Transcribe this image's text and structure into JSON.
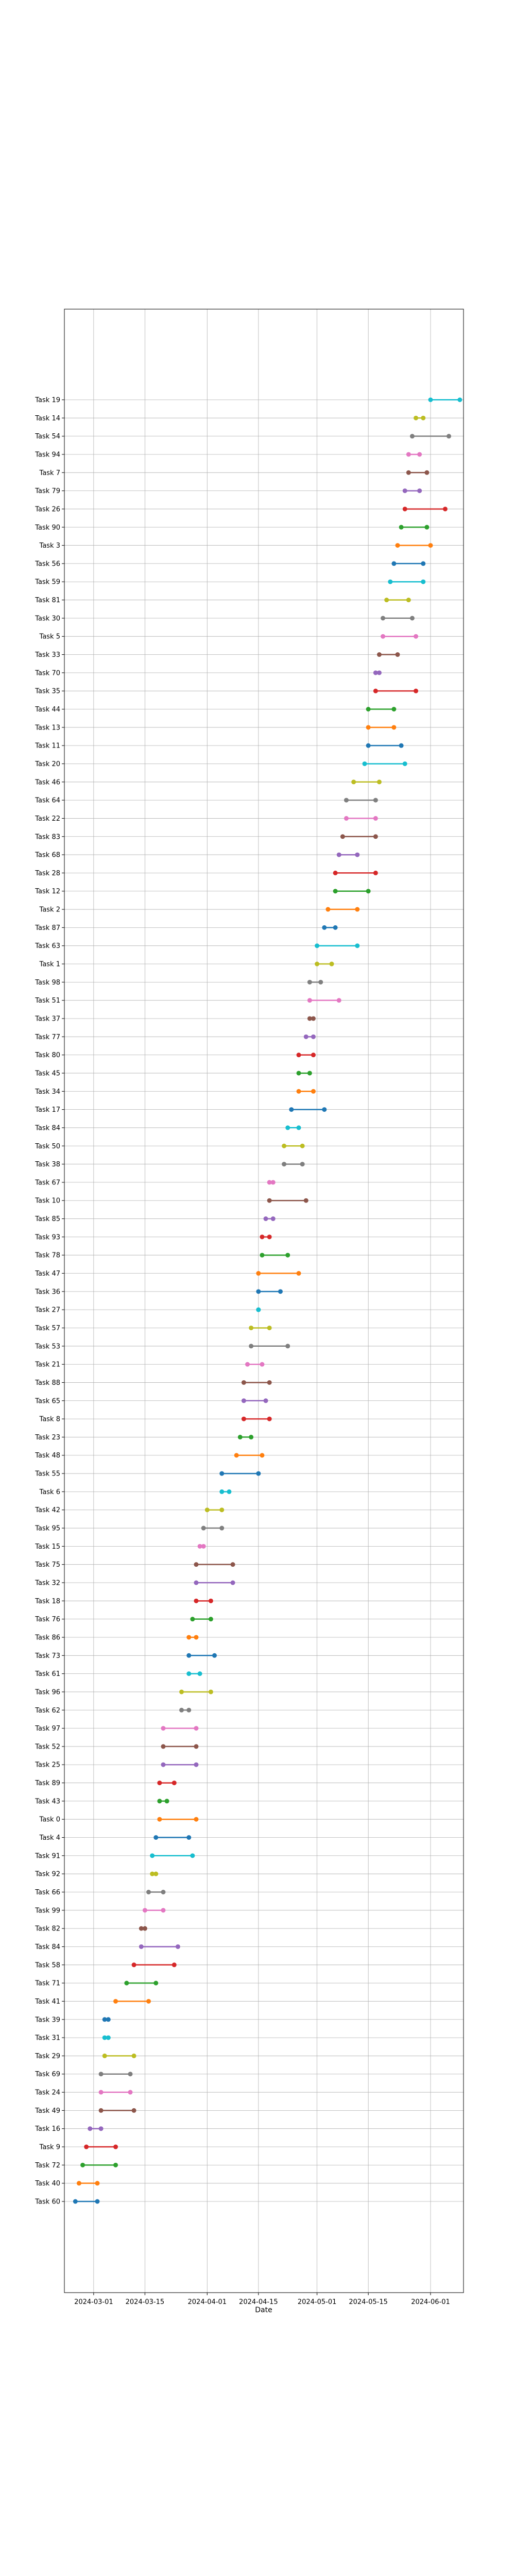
{
  "chart_data": {
    "type": "dumbbell",
    "xlabel": "Date",
    "ylabel": "",
    "grid": true,
    "legend": "none",
    "x_ticks": [
      "2024-03-01",
      "2024-03-15",
      "2024-04-01",
      "2024-04-15",
      "2024-05-01",
      "2024-05-15",
      "2024-06-01"
    ],
    "xlim": [
      "2024-02-22",
      "2024-06-10"
    ],
    "tasks": [
      {
        "label": "Task 19",
        "start": "2024-06-01",
        "end": "2024-06-09",
        "color": "#17becf"
      },
      {
        "label": "Task 14",
        "start": "2024-05-28",
        "end": "2024-05-30",
        "color": "#bcbd22"
      },
      {
        "label": "Task 54",
        "start": "2024-05-27",
        "end": "2024-06-06",
        "color": "#7f7f7f"
      },
      {
        "label": "Task 94",
        "start": "2024-05-26",
        "end": "2024-05-29",
        "color": "#e377c2"
      },
      {
        "label": "Task 7",
        "start": "2024-05-26",
        "end": "2024-05-31",
        "color": "#8c564b"
      },
      {
        "label": "Task 79",
        "start": "2024-05-25",
        "end": "2024-05-29",
        "color": "#9467bd"
      },
      {
        "label": "Task 26",
        "start": "2024-05-25",
        "end": "2024-06-05",
        "color": "#d62728"
      },
      {
        "label": "Task 90",
        "start": "2024-05-24",
        "end": "2024-05-31",
        "color": "#2ca02c"
      },
      {
        "label": "Task 3",
        "start": "2024-05-23",
        "end": "2024-06-01",
        "color": "#ff7f0e"
      },
      {
        "label": "Task 56",
        "start": "2024-05-22",
        "end": "2024-05-30",
        "color": "#1f77b4"
      },
      {
        "label": "Task 59",
        "start": "2024-05-21",
        "end": "2024-05-30",
        "color": "#17becf"
      },
      {
        "label": "Task 81",
        "start": "2024-05-20",
        "end": "2024-05-26",
        "color": "#bcbd22"
      },
      {
        "label": "Task 30",
        "start": "2024-05-19",
        "end": "2024-05-27",
        "color": "#7f7f7f"
      },
      {
        "label": "Task 5",
        "start": "2024-05-19",
        "end": "2024-05-28",
        "color": "#e377c2"
      },
      {
        "label": "Task 33",
        "start": "2024-05-18",
        "end": "2024-05-23",
        "color": "#8c564b"
      },
      {
        "label": "Task 70",
        "start": "2024-05-17",
        "end": "2024-05-18",
        "color": "#9467bd"
      },
      {
        "label": "Task 35",
        "start": "2024-05-17",
        "end": "2024-05-28",
        "color": "#d62728"
      },
      {
        "label": "Task 44",
        "start": "2024-05-15",
        "end": "2024-05-22",
        "color": "#2ca02c"
      },
      {
        "label": "Task 13",
        "start": "2024-05-15",
        "end": "2024-05-22",
        "color": "#ff7f0e"
      },
      {
        "label": "Task 11",
        "start": "2024-05-15",
        "end": "2024-05-24",
        "color": "#1f77b4"
      },
      {
        "label": "Task 20",
        "start": "2024-05-14",
        "end": "2024-05-25",
        "color": "#17becf"
      },
      {
        "label": "Task 46",
        "start": "2024-05-11",
        "end": "2024-05-18",
        "color": "#bcbd22"
      },
      {
        "label": "Task 64",
        "start": "2024-05-09",
        "end": "2024-05-17",
        "color": "#7f7f7f"
      },
      {
        "label": "Task 22",
        "start": "2024-05-09",
        "end": "2024-05-17",
        "color": "#e377c2"
      },
      {
        "label": "Task 83",
        "start": "2024-05-08",
        "end": "2024-05-17",
        "color": "#8c564b"
      },
      {
        "label": "Task 68",
        "start": "2024-05-07",
        "end": "2024-05-12",
        "color": "#9467bd"
      },
      {
        "label": "Task 28",
        "start": "2024-05-06",
        "end": "2024-05-17",
        "color": "#d62728"
      },
      {
        "label": "Task 12",
        "start": "2024-05-06",
        "end": "2024-05-15",
        "color": "#2ca02c"
      },
      {
        "label": "Task 2",
        "start": "2024-05-04",
        "end": "2024-05-12",
        "color": "#ff7f0e"
      },
      {
        "label": "Task 87",
        "start": "2024-05-03",
        "end": "2024-05-06",
        "color": "#1f77b4"
      },
      {
        "label": "Task 63",
        "start": "2024-05-01",
        "end": "2024-05-12",
        "color": "#17becf"
      },
      {
        "label": "Task 1",
        "start": "2024-05-01",
        "end": "2024-05-05",
        "color": "#bcbd22"
      },
      {
        "label": "Task 98",
        "start": "2024-04-29",
        "end": "2024-05-02",
        "color": "#7f7f7f"
      },
      {
        "label": "Task 51",
        "start": "2024-04-29",
        "end": "2024-05-07",
        "color": "#e377c2"
      },
      {
        "label": "Task 37",
        "start": "2024-04-29",
        "end": "2024-04-30",
        "color": "#8c564b"
      },
      {
        "label": "Task 77",
        "start": "2024-04-28",
        "end": "2024-04-30",
        "color": "#9467bd"
      },
      {
        "label": "Task 80",
        "start": "2024-04-26",
        "end": "2024-04-30",
        "color": "#d62728"
      },
      {
        "label": "Task 45",
        "start": "2024-04-26",
        "end": "2024-04-29",
        "color": "#2ca02c"
      },
      {
        "label": "Task 34",
        "start": "2024-04-26",
        "end": "2024-04-30",
        "color": "#ff7f0e"
      },
      {
        "label": "Task 17",
        "start": "2024-04-24",
        "end": "2024-05-03",
        "color": "#1f77b4"
      },
      {
        "label": "Task 84",
        "start": "2024-04-23",
        "end": "2024-04-26",
        "color": "#17becf"
      },
      {
        "label": "Task 50",
        "start": "2024-04-22",
        "end": "2024-04-27",
        "color": "#bcbd22"
      },
      {
        "label": "Task 38",
        "start": "2024-04-22",
        "end": "2024-04-27",
        "color": "#7f7f7f"
      },
      {
        "label": "Task 67",
        "start": "2024-04-18",
        "end": "2024-04-19",
        "color": "#e377c2"
      },
      {
        "label": "Task 10",
        "start": "2024-04-18",
        "end": "2024-04-28",
        "color": "#8c564b"
      },
      {
        "label": "Task 85",
        "start": "2024-04-17",
        "end": "2024-04-19",
        "color": "#9467bd"
      },
      {
        "label": "Task 93",
        "start": "2024-04-16",
        "end": "2024-04-18",
        "color": "#d62728"
      },
      {
        "label": "Task 78",
        "start": "2024-04-16",
        "end": "2024-04-23",
        "color": "#2ca02c"
      },
      {
        "label": "Task 47",
        "start": "2024-04-15",
        "end": "2024-04-26",
        "color": "#ff7f0e"
      },
      {
        "label": "Task 36",
        "start": "2024-04-15",
        "end": "2024-04-21",
        "color": "#1f77b4"
      },
      {
        "label": "Task 27",
        "start": "2024-04-15",
        "end": "2024-04-15",
        "color": "#17becf"
      },
      {
        "label": "Task 57",
        "start": "2024-04-13",
        "end": "2024-04-18",
        "color": "#bcbd22"
      },
      {
        "label": "Task 53",
        "start": "2024-04-13",
        "end": "2024-04-23",
        "color": "#7f7f7f"
      },
      {
        "label": "Task 21",
        "start": "2024-04-12",
        "end": "2024-04-16",
        "color": "#e377c2"
      },
      {
        "label": "Task 88",
        "start": "2024-04-11",
        "end": "2024-04-18",
        "color": "#8c564b"
      },
      {
        "label": "Task 65",
        "start": "2024-04-11",
        "end": "2024-04-17",
        "color": "#9467bd"
      },
      {
        "label": "Task 8",
        "start": "2024-04-11",
        "end": "2024-04-18",
        "color": "#d62728"
      },
      {
        "label": "Task 23",
        "start": "2024-04-10",
        "end": "2024-04-13",
        "color": "#2ca02c"
      },
      {
        "label": "Task 48",
        "start": "2024-04-09",
        "end": "2024-04-16",
        "color": "#ff7f0e"
      },
      {
        "label": "Task 55",
        "start": "2024-04-05",
        "end": "2024-04-15",
        "color": "#1f77b4"
      },
      {
        "label": "Task 6",
        "start": "2024-04-05",
        "end": "2024-04-07",
        "color": "#17becf"
      },
      {
        "label": "Task 42",
        "start": "2024-04-01",
        "end": "2024-04-05",
        "color": "#bcbd22"
      },
      {
        "label": "Task 95",
        "start": "2024-03-31",
        "end": "2024-04-05",
        "color": "#7f7f7f"
      },
      {
        "label": "Task 15",
        "start": "2024-03-30",
        "end": "2024-03-31",
        "color": "#e377c2"
      },
      {
        "label": "Task 75",
        "start": "2024-03-29",
        "end": "2024-04-08",
        "color": "#8c564b"
      },
      {
        "label": "Task 32",
        "start": "2024-03-29",
        "end": "2024-04-08",
        "color": "#9467bd"
      },
      {
        "label": "Task 18",
        "start": "2024-03-29",
        "end": "2024-04-02",
        "color": "#d62728"
      },
      {
        "label": "Task 76",
        "start": "2024-03-28",
        "end": "2024-04-02",
        "color": "#2ca02c"
      },
      {
        "label": "Task 86",
        "start": "2024-03-27",
        "end": "2024-03-29",
        "color": "#ff7f0e"
      },
      {
        "label": "Task 73",
        "start": "2024-03-27",
        "end": "2024-04-03",
        "color": "#1f77b4"
      },
      {
        "label": "Task 61",
        "start": "2024-03-27",
        "end": "2024-03-30",
        "color": "#17becf"
      },
      {
        "label": "Task 96",
        "start": "2024-03-25",
        "end": "2024-04-02",
        "color": "#bcbd22"
      },
      {
        "label": "Task 62",
        "start": "2024-03-25",
        "end": "2024-03-27",
        "color": "#7f7f7f"
      },
      {
        "label": "Task 97",
        "start": "2024-03-20",
        "end": "2024-03-29",
        "color": "#e377c2"
      },
      {
        "label": "Task 52",
        "start": "2024-03-20",
        "end": "2024-03-29",
        "color": "#8c564b"
      },
      {
        "label": "Task 25",
        "start": "2024-03-20",
        "end": "2024-03-29",
        "color": "#9467bd"
      },
      {
        "label": "Task 89",
        "start": "2024-03-19",
        "end": "2024-03-23",
        "color": "#d62728"
      },
      {
        "label": "Task 43",
        "start": "2024-03-19",
        "end": "2024-03-21",
        "color": "#2ca02c"
      },
      {
        "label": "Task 0",
        "start": "2024-03-19",
        "end": "2024-03-29",
        "color": "#ff7f0e"
      },
      {
        "label": "Task 4",
        "start": "2024-03-18",
        "end": "2024-03-27",
        "color": "#1f77b4"
      },
      {
        "label": "Task 91",
        "start": "2024-03-17",
        "end": "2024-03-28",
        "color": "#17becf"
      },
      {
        "label": "Task 92",
        "start": "2024-03-17",
        "end": "2024-03-18",
        "color": "#bcbd22"
      },
      {
        "label": "Task 66",
        "start": "2024-03-16",
        "end": "2024-03-20",
        "color": "#7f7f7f"
      },
      {
        "label": "Task 99",
        "start": "2024-03-15",
        "end": "2024-03-20",
        "color": "#e377c2"
      },
      {
        "label": "Task 82",
        "start": "2024-03-14",
        "end": "2024-03-15",
        "color": "#8c564b"
      },
      {
        "label": "Task 84",
        "start": "2024-03-14",
        "end": "2024-03-24",
        "color": "#9467bd"
      },
      {
        "label": "Task 58",
        "start": "2024-03-12",
        "end": "2024-03-23",
        "color": "#d62728"
      },
      {
        "label": "Task 71",
        "start": "2024-03-10",
        "end": "2024-03-18",
        "color": "#2ca02c"
      },
      {
        "label": "Task 41",
        "start": "2024-03-07",
        "end": "2024-03-16",
        "color": "#ff7f0e"
      },
      {
        "label": "Task 39",
        "start": "2024-03-04",
        "end": "2024-03-05",
        "color": "#1f77b4"
      },
      {
        "label": "Task 31",
        "start": "2024-03-04",
        "end": "2024-03-05",
        "color": "#17becf"
      },
      {
        "label": "Task 29",
        "start": "2024-03-04",
        "end": "2024-03-12",
        "color": "#bcbd22"
      },
      {
        "label": "Task 69",
        "start": "2024-03-03",
        "end": "2024-03-11",
        "color": "#7f7f7f"
      },
      {
        "label": "Task 24",
        "start": "2024-03-03",
        "end": "2024-03-11",
        "color": "#e377c2"
      },
      {
        "label": "Task 49",
        "start": "2024-03-03",
        "end": "2024-03-12",
        "color": "#8c564b"
      },
      {
        "label": "Task 16",
        "start": "2024-02-29",
        "end": "2024-03-03",
        "color": "#9467bd"
      },
      {
        "label": "Task 9",
        "start": "2024-02-28",
        "end": "2024-03-07",
        "color": "#d62728"
      },
      {
        "label": "Task 72",
        "start": "2024-02-27",
        "end": "2024-03-07",
        "color": "#2ca02c"
      },
      {
        "label": "Task 40",
        "start": "2024-02-26",
        "end": "2024-03-02",
        "color": "#ff7f0e"
      },
      {
        "label": "Task 60",
        "start": "2024-02-25",
        "end": "2024-03-02",
        "color": "#1f77b4"
      }
    ]
  }
}
